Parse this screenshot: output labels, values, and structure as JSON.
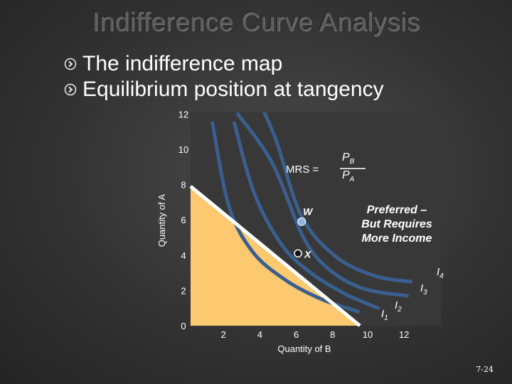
{
  "slide": {
    "title": "Indifference Curve Analysis",
    "bullets": [
      "The indifference map",
      "Equilibrium position at tangency"
    ],
    "slide_number": "7-24"
  },
  "chart_data": {
    "type": "line",
    "xlabel": "Quantity of B",
    "ylabel": "Quantity of A",
    "x_ticks": [
      2,
      4,
      6,
      8,
      10,
      12
    ],
    "y_ticks": [
      0,
      2,
      4,
      6,
      8,
      10,
      12
    ],
    "xlim": [
      0,
      12.5
    ],
    "ylim": [
      0,
      12
    ],
    "grid": false,
    "budget_line": {
      "points": [
        [
          0,
          7.9
        ],
        [
          9.3,
          0
        ]
      ],
      "shaded_region": "budget set (below line)"
    },
    "series": [
      {
        "name": "I1",
        "points": [
          [
            1.2,
            11.5
          ],
          [
            2.1,
            6.8
          ],
          [
            3.4,
            4.2
          ],
          [
            5.2,
            2.6
          ],
          [
            7.2,
            1.5
          ],
          [
            9.2,
            0.8
          ]
        ]
      },
      {
        "name": "I2",
        "points": [
          [
            2.4,
            11.5
          ],
          [
            3.5,
            7.5
          ],
          [
            5.0,
            4.6
          ],
          [
            6.6,
            3.0
          ],
          [
            8.5,
            1.8
          ],
          [
            10.3,
            1.0
          ]
        ]
      },
      {
        "name": "I3",
        "points": [
          [
            2.6,
            12.0
          ],
          [
            4.5,
            9.2
          ],
          [
            6.2,
            5.0
          ],
          [
            7.6,
            3.2
          ],
          [
            9.5,
            2.1
          ],
          [
            11.9,
            1.7
          ]
        ]
      },
      {
        "name": "I4",
        "points": [
          [
            3.6,
            13.1
          ],
          [
            4.7,
            10.5
          ],
          [
            6.1,
            6.2
          ],
          [
            8.0,
            3.9
          ],
          [
            10.2,
            2.8
          ],
          [
            12.1,
            2.5
          ]
        ]
      }
    ],
    "points": [
      {
        "label": "W",
        "x": 6.1,
        "y": 5.9
      },
      {
        "label": "X",
        "x": 5.9,
        "y": 4.1
      }
    ],
    "annotations": {
      "mrs_prefix": "MRS =",
      "mrs_num": "P",
      "mrs_num_sub": "B",
      "mrs_den": "P",
      "mrs_den_sub": "A",
      "preferred": [
        "Preferred –",
        "But Requires",
        "More Income"
      ],
      "curve_labels": [
        {
          "base": "I",
          "sub": "1"
        },
        {
          "base": "I",
          "sub": "2"
        },
        {
          "base": "I",
          "sub": "3"
        },
        {
          "base": "I",
          "sub": "4"
        }
      ]
    },
    "colors": {
      "budget_fill": "#fcc870",
      "budget_line": "#ffffff",
      "curves": "#3a5f8f",
      "plot_bg": "#383838",
      "point_fill": "#8fb6e0"
    }
  }
}
